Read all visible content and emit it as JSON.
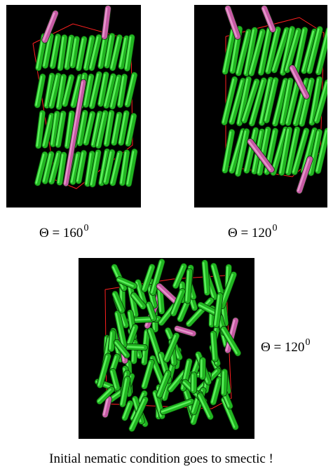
{
  "panels": [
    {
      "id": "panel-a",
      "label": "Θ = 160",
      "exponent": "0",
      "layers": 4
    },
    {
      "id": "panel-b",
      "label": "Θ = 120",
      "exponent": "0",
      "layers": 3
    },
    {
      "id": "panel-c",
      "label": "Θ = 120",
      "exponent": "0",
      "layers": 0
    }
  ],
  "footer": "Initial nematic condition goes to smectic !",
  "colors": {
    "rod": "#21b521",
    "rod_highlight": "#6dff6d",
    "rod_dark": "#0b4f0b",
    "defect_rod": "#c45aa3",
    "box": "#ff2020",
    "background": "#000000"
  }
}
